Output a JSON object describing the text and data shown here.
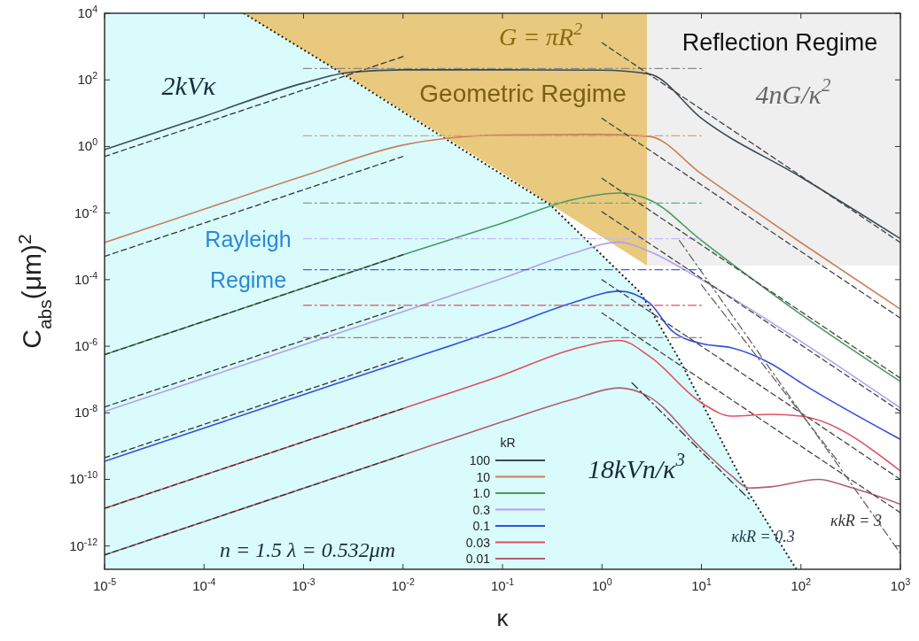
{
  "chart_data": {
    "type": "line",
    "xlabel": "κ",
    "ylabel": "C$_{abs}$(μm)$^{2}$",
    "log": "xy",
    "xlim": [
      1e-05,
      1000
    ],
    "ylim": [
      2e-13,
      10000
    ],
    "xticks": [
      {
        "value": 1e-05,
        "label": "10$^{-5}$"
      },
      {
        "value": 0.0001,
        "label": "10$^{-4}$"
      },
      {
        "value": 0.001,
        "label": "10$^{-3}$"
      },
      {
        "value": 0.01,
        "label": "10$^{-2}$"
      },
      {
        "value": 0.1,
        "label": "10$^{-1}$"
      },
      {
        "value": 1,
        "label": "10$^{0}$"
      },
      {
        "value": 10,
        "label": "10$^{1}$"
      },
      {
        "value": 100,
        "label": "10$^{2}$"
      },
      {
        "value": 1000,
        "label": "10$^{3}$"
      }
    ],
    "yticks": [
      {
        "value": 1e-12,
        "label": "10$^{-12}$"
      },
      {
        "value": 1e-10,
        "label": "10$^{-10}$"
      },
      {
        "value": 1e-08,
        "label": "10$^{-8}$"
      },
      {
        "value": 1e-06,
        "label": "10$^{-6}$"
      },
      {
        "value": 0.0001,
        "label": "10$^{-4}$"
      },
      {
        "value": 0.01,
        "label": "10$^{-2}$"
      },
      {
        "value": 1,
        "label": "10$^{0}$"
      },
      {
        "value": 100,
        "label": "10$^{2}$"
      },
      {
        "value": 10000,
        "label": "10$^{4}$"
      }
    ],
    "grid": false,
    "legend": "bottom",
    "legend_title": "kR",
    "series": [
      {
        "type": "area",
        "line_style": "dotted",
        "color": "#d9fbfc",
        "x": [
          1e-05,
          0.00025,
          0.0026,
          0.1,
          0.3,
          2.45,
          6,
          29,
          90
        ],
        "values": [
          10000,
          10000,
          140,
          0.14,
          0.018,
          4e-05,
          4e-07,
          4.6e-11,
          2e-13
        ]
      },
      {
        "type": "line",
        "line_style": "dashed",
        "color": "#333333",
        "x": [
          1e-05,
          0.01
        ],
        "values": [
          0.5,
          500
        ]
      },
      {
        "type": "line",
        "line_style": "dashed",
        "color": "#333333",
        "x": [
          1e-05,
          0.01
        ],
        "values": [
          0.0005,
          0.5
        ]
      },
      {
        "type": "line",
        "line_style": "dashed",
        "color": "#333333",
        "x": [
          1e-05,
          0.01
        ],
        "values": [
          5.6e-07,
          0.00056
        ]
      },
      {
        "type": "line",
        "line_style": "dashed",
        "color": "#333333",
        "x": [
          1e-05,
          0.01
        ],
        "values": [
          1.5e-08,
          1.5e-05
        ]
      },
      {
        "type": "line",
        "line_style": "dashed",
        "color": "#333333",
        "x": [
          1e-05,
          0.01
        ],
        "values": [
          4.5e-10,
          4.5e-07
        ]
      },
      {
        "type": "line",
        "line_style": "dashed",
        "color": "#333333",
        "x": [
          1e-05,
          0.01
        ],
        "values": [
          1.35e-11,
          1.35e-08
        ]
      },
      {
        "type": "line",
        "line_style": "dashed",
        "color": "#333333",
        "x": [
          1e-05,
          0.01
        ],
        "values": [
          5.4e-13,
          5.4e-10
        ]
      },
      {
        "type": "line",
        "line_style": "dashdot",
        "color": "#8a8a8a",
        "x": [
          0.001,
          10
        ],
        "values": [
          220,
          220
        ]
      },
      {
        "type": "line",
        "line_style": "dashdot",
        "color": "#d9a080",
        "x": [
          0.001,
          10
        ],
        "values": [
          2.1,
          2.1
        ]
      },
      {
        "type": "line",
        "line_style": "dashdot",
        "color": "#6aaa80",
        "x": [
          0.001,
          10
        ],
        "values": [
          0.02,
          0.02
        ]
      },
      {
        "type": "line",
        "line_style": "dashdot",
        "color": "#c8b8f8",
        "x": [
          0.001,
          10
        ],
        "values": [
          0.0017,
          0.0017
        ]
      },
      {
        "type": "line",
        "line_style": "dashdot",
        "color": "#4060e0",
        "x": [
          0.001,
          10
        ],
        "values": [
          0.0002,
          0.0002
        ]
      },
      {
        "type": "line",
        "line_style": "dashdot",
        "color": "#e05060",
        "x": [
          0.001,
          10
        ],
        "values": [
          1.7e-05,
          1.7e-05
        ]
      },
      {
        "type": "line",
        "line_style": "dashdot",
        "color": "#c07070",
        "x": [
          0.001,
          10
        ],
        "values": [
          1.8e-06,
          1.8e-06
        ]
      },
      {
        "type": "line",
        "line_style": "dashed",
        "color": "#444444",
        "x": [
          1,
          1000
        ],
        "values": [
          1300,
          0.0013
        ]
      },
      {
        "type": "line",
        "line_style": "dashed",
        "color": "#444444",
        "x": [
          1,
          1000
        ],
        "values": [
          7,
          7e-06
        ]
      },
      {
        "type": "line",
        "line_style": "dashed",
        "color": "#444444",
        "x": [
          1,
          1000
        ],
        "values": [
          0.11,
          1.1e-07
        ]
      },
      {
        "type": "line",
        "line_style": "dashed",
        "color": "#444444",
        "x": [
          1,
          1000
        ],
        "values": [
          0.011,
          1.1e-08
        ]
      },
      {
        "type": "line",
        "line_style": "dashed",
        "color": "#444444",
        "x": [
          1,
          1000
        ],
        "values": [
          0.0001,
          1e-10
        ]
      },
      {
        "type": "line",
        "line_style": "dashed",
        "color": "#444444",
        "x": [
          1,
          1000
        ],
        "values": [
          1e-05,
          1e-11
        ]
      },
      {
        "type": "line",
        "line_style": "dashdot",
        "color": "#333333",
        "x": [
          2,
          30
        ],
        "values": [
          8e-08,
          2.6e-11
        ]
      },
      {
        "type": "line",
        "line_style": "dashdot",
        "color": "#666666",
        "x": [
          10,
          245
        ],
        "values": [
          7e-05,
          3e-10
        ]
      },
      {
        "type": "line",
        "line_style": "dashdot",
        "color": "#666666",
        "x": [
          6,
          1000
        ],
        "values": [
          0.0015,
          6e-13
        ]
      },
      {
        "name": "100",
        "color": "#3a4a55",
        "x": [
          1e-05,
          0.0001,
          0.001,
          0.003,
          0.01,
          0.1,
          1,
          3,
          10,
          100,
          1000
        ],
        "values": [
          0.8,
          8,
          80,
          170,
          200,
          200,
          195,
          150,
          7,
          0.12,
          0.0017
        ]
      },
      {
        "name": "10",
        "color": "#c8805a",
        "x": [
          1e-05,
          0.0001,
          0.001,
          0.01,
          0.03,
          0.1,
          1,
          3,
          10,
          100,
          1000
        ],
        "values": [
          0.0013,
          0.013,
          0.13,
          1.1,
          1.8,
          2.2,
          2.3,
          2,
          0.15,
          0.0013,
          1.3e-05
        ]
      },
      {
        "name": "1.0",
        "color": "#4a9a60",
        "x": [
          1e-05,
          0.0001,
          0.001,
          0.01,
          0.1,
          0.5,
          1.5,
          3,
          10,
          100,
          1000
        ],
        "values": [
          5.6e-07,
          5.6e-06,
          5.6e-05,
          0.00056,
          0.005,
          0.025,
          0.04,
          0.025,
          0.0015,
          9e-06,
          8.7e-08
        ]
      },
      {
        "name": "0.3",
        "color": "#b0a0f0",
        "x": [
          1e-05,
          0.0001,
          0.001,
          0.01,
          0.1,
          0.5,
          1.5,
          3,
          10,
          100,
          1000
        ],
        "values": [
          1.1e-08,
          1.1e-07,
          1.1e-06,
          1.1e-05,
          0.00011,
          0.0006,
          0.00135,
          0.0007,
          0.0001,
          1.4e-06,
          1.4e-08
        ]
      },
      {
        "name": "0.1",
        "color": "#3050e0",
        "x": [
          1e-05,
          0.0001,
          0.001,
          0.01,
          0.1,
          0.5,
          1.5,
          3,
          5,
          10,
          20,
          50,
          100,
          1000
        ],
        "values": [
          3.5e-10,
          3.5e-09,
          3.5e-08,
          3.5e-07,
          3.5e-06,
          2e-05,
          4.5e-05,
          2e-05,
          3e-06,
          1.2e-06,
          9e-07,
          3e-07,
          8e-08,
          1.6e-09
        ]
      },
      {
        "name": "0.03",
        "color": "#e05060",
        "x": [
          1e-05,
          0.0001,
          0.001,
          0.01,
          0.1,
          0.5,
          1.5,
          3,
          10,
          20,
          50,
          100,
          1000
        ],
        "values": [
          1.35e-11,
          1.35e-10,
          1.35e-09,
          1.35e-08,
          1.35e-07,
          8e-07,
          1.5e-06,
          5e-07,
          2e-08,
          8e-09,
          9e-09,
          8e-09,
          1.8e-10
        ]
      },
      {
        "name": "0.01",
        "color": "#b06070",
        "x": [
          1e-05,
          0.0001,
          0.001,
          0.01,
          0.1,
          0.5,
          1.5,
          3,
          10,
          20,
          30,
          50,
          150,
          300,
          1000
        ],
        "values": [
          5.4e-13,
          5.4e-12,
          5.4e-11,
          5.4e-10,
          5.4e-09,
          2.5e-08,
          5.6e-08,
          3e-08,
          8.5e-10,
          1.3e-10,
          5.5e-11,
          6e-11,
          1e-10,
          6e-11,
          1.8e-11
        ]
      }
    ],
    "annotations": [
      "G = πR$^{2}$",
      "Geometric Regime",
      "Reflection Regime",
      "4nG/κ$^{2}$",
      "2kVκ",
      "Rayleigh",
      "Regime",
      "18kVn/κ$^{3}$",
      "κkR = 0.3",
      "κkR = 3",
      "n = 1.5  λ = 0.532μm"
    ]
  }
}
